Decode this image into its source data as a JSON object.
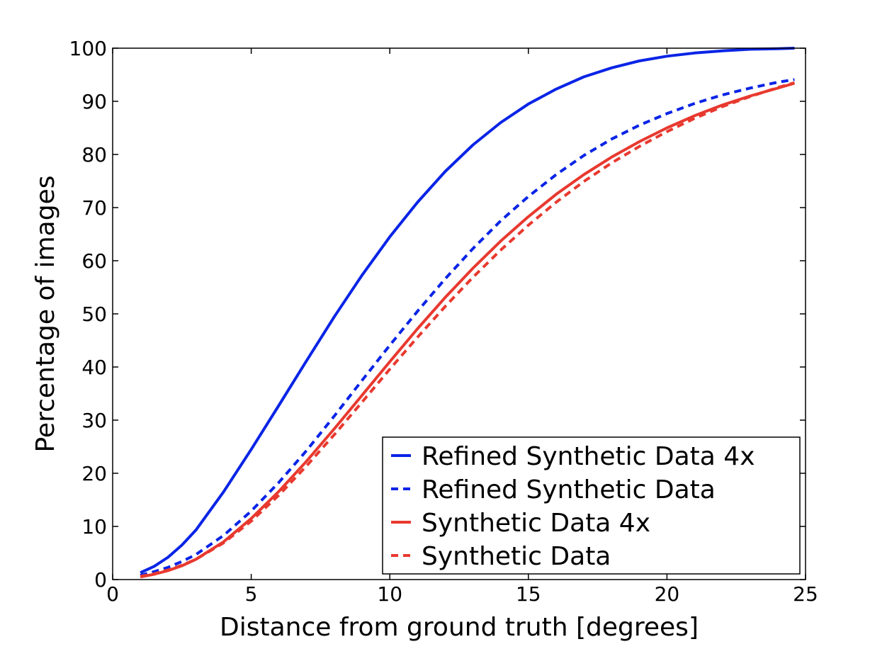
{
  "chart_data": {
    "type": "line",
    "xlabel": "Distance from ground truth [degrees]",
    "ylabel": "Percentage of images",
    "xlim": [
      0,
      25
    ],
    "ylim": [
      0,
      100
    ],
    "xticks": [
      0,
      5,
      10,
      15,
      20,
      25
    ],
    "yticks": [
      0,
      10,
      20,
      30,
      40,
      50,
      60,
      70,
      80,
      90,
      100
    ],
    "grid": false,
    "legend_position": "bottom-right",
    "x": [
      1,
      1.5,
      2,
      2.5,
      3,
      4,
      5,
      6,
      7,
      8,
      9,
      10,
      11,
      12,
      13,
      14,
      15,
      16,
      17,
      18,
      19,
      20,
      21,
      22,
      23,
      24,
      24.6
    ],
    "series": [
      {
        "name": "Refined Synthetic Data 4x",
        "color": "#0a24e6",
        "style": "solid",
        "values": [
          1.3,
          2.5,
          4.2,
          6.5,
          9.3,
          16.5,
          24.5,
          32.8,
          41.2,
          49.5,
          57.3,
          64.5,
          71,
          76.8,
          81.8,
          86,
          89.5,
          92.3,
          94.6,
          96.3,
          97.6,
          98.5,
          99.1,
          99.5,
          99.8,
          99.9,
          100
        ]
      },
      {
        "name": "Refined Synthetic Data",
        "color": "#0a24e6",
        "style": "dashed",
        "values": [
          0.8,
          1.5,
          2.3,
          3.4,
          4.7,
          8.3,
          12.9,
          18.3,
          24.3,
          30.8,
          37.5,
          44.1,
          50.5,
          56.6,
          62.3,
          67.5,
          72.1,
          76.2,
          79.8,
          82.9,
          85.5,
          87.7,
          89.6,
          91.2,
          92.5,
          93.6,
          94.1
        ]
      },
      {
        "name": "Synthetic Data 4x",
        "color": "#e8392f",
        "style": "solid",
        "values": [
          0.5,
          1,
          1.7,
          2.6,
          3.8,
          7.1,
          11.5,
          16.6,
          22.3,
          28.4,
          34.7,
          41,
          47.2,
          53.1,
          58.6,
          63.7,
          68.3,
          72.5,
          76.2,
          79.5,
          82.4,
          85,
          87.3,
          89.3,
          91,
          92.5,
          93.4
        ]
      },
      {
        "name": "Synthetic Data",
        "color": "#e8392f",
        "style": "dashed",
        "values": [
          0.6,
          1.1,
          1.8,
          2.7,
          3.8,
          6.9,
          11,
          15.9,
          21.4,
          27.3,
          33.4,
          39.6,
          45.6,
          51.4,
          56.9,
          62,
          66.7,
          71,
          74.9,
          78.4,
          81.5,
          84.3,
          86.8,
          89,
          90.9,
          92.6,
          93.5
        ]
      }
    ]
  }
}
